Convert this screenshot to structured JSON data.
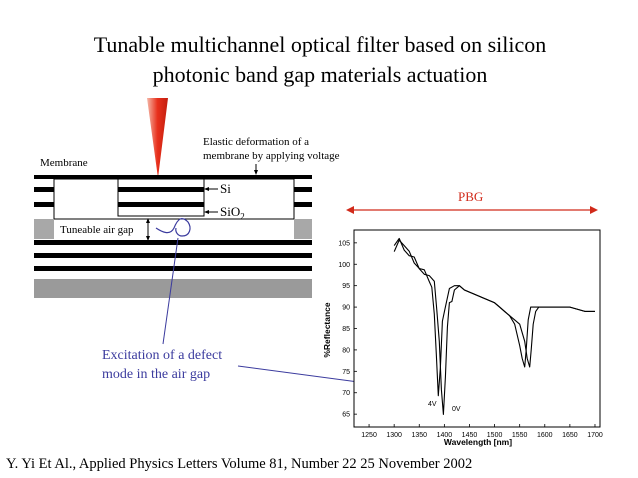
{
  "slide": {
    "title_line1": "Tunable multichannel optical filter based on silicon",
    "title_line2": "photonic band gap materials actuation",
    "citation": "Y. Yi Et Al., Applied Physics Letters Volume 81, Number 22 25 November 2002"
  },
  "schematic": {
    "membrane_label": "Membrane",
    "elastic_line1": "Elastic deformation of a",
    "elastic_line2": "membrane by applying voltage",
    "si_label": "Si",
    "sio2_label": "SiO",
    "sio2_sub": "2",
    "air_gap_label": "Tuneable air gap",
    "defect_line1": "Excitation of a defect",
    "defect_line2": "mode in the air gap",
    "pbg_label": "PBG",
    "colors": {
      "tip": "#e8301c",
      "substrate": "#9a9a9a",
      "annotation": "#3b3b9e",
      "pbg": "#d12a1a"
    }
  },
  "chart_data": {
    "type": "line",
    "xlabel": "Wavelength [nm]",
    "ylabel": "%Reflectance",
    "xlim": [
      1220,
      1710
    ],
    "ylim": [
      62,
      108
    ],
    "x_ticks": [
      1250,
      1300,
      1350,
      1400,
      1450,
      1500,
      1550,
      1600,
      1650,
      1700
    ],
    "y_ticks": [
      65,
      70,
      75,
      80,
      85,
      90,
      95,
      100,
      105
    ],
    "annotations": [
      "4V",
      "0V"
    ],
    "series": [
      {
        "x": [
          1300,
          1310,
          1320,
          1330,
          1340,
          1350,
          1360,
          1370,
          1375,
          1380,
          1384,
          1388,
          1392,
          1396,
          1400,
          1405,
          1410,
          1420,
          1430,
          1440,
          1460,
          1480,
          1500,
          1510,
          1520,
          1530,
          1540,
          1550,
          1555,
          1560,
          1563,
          1567,
          1572,
          1578,
          1585,
          1600,
          1620,
          1650,
          1680,
          1700
        ],
        "y": [
          104,
          106,
          104,
          102,
          101,
          99,
          98,
          97,
          95,
          88,
          78,
          70,
          76,
          86,
          90,
          92,
          94,
          95,
          95,
          94,
          93,
          92,
          91,
          90,
          89,
          88,
          86,
          81,
          78,
          76,
          80,
          87,
          90,
          90,
          90,
          90,
          90,
          90,
          89,
          89
        ]
      },
      {
        "x": [
          1300,
          1310,
          1320,
          1330,
          1340,
          1350,
          1360,
          1370,
          1380,
          1385,
          1390,
          1394,
          1398,
          1402,
          1406,
          1410,
          1415,
          1420,
          1430,
          1440,
          1460,
          1480,
          1500,
          1510,
          1520,
          1530,
          1540,
          1550,
          1560,
          1565,
          1570,
          1573,
          1577,
          1582,
          1588,
          1595,
          1620,
          1650,
          1680,
          1700
        ],
        "y": [
          104,
          105,
          104,
          102,
          101,
          100,
          98,
          97,
          95,
          90,
          82,
          70,
          66,
          74,
          85,
          90,
          92,
          94,
          95,
          94,
          93,
          92,
          91,
          90,
          89,
          88,
          87,
          86,
          82,
          78,
          76,
          80,
          86,
          89,
          90,
          90,
          90,
          90,
          89,
          89
        ]
      }
    ]
  }
}
